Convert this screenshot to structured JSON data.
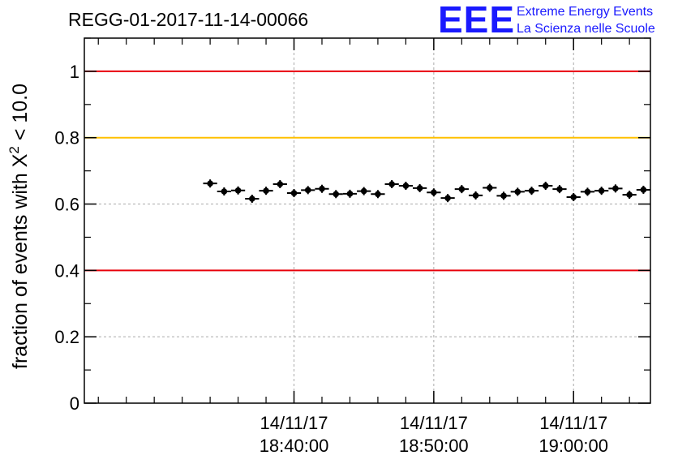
{
  "header": {
    "run_id": "REGG-01-2017-11-14-00066",
    "logo_text": "EEE",
    "brand_line1": "Extreme Energy Events",
    "brand_line2": "La Scienza nelle Scuole",
    "brand_color": "#1a1aff"
  },
  "chart_data": {
    "type": "scatter",
    "title": "REGG-01-2017-11-14-00066",
    "xlabel": "",
    "ylabel_prefix": "fraction of events with X",
    "ylabel_sup": "2",
    "ylabel_suffix": " < 10.0",
    "xlim": [
      0,
      40.5
    ],
    "ylim": [
      0,
      1.1
    ],
    "grid": true,
    "y_ticks": [
      {
        "value": 0,
        "label": "0"
      },
      {
        "value": 0.2,
        "label": "0.2"
      },
      {
        "value": 0.4,
        "label": "0.4"
      },
      {
        "value": 0.6,
        "label": "0.6"
      },
      {
        "value": 0.8,
        "label": "0.8"
      },
      {
        "value": 1,
        "label": "1"
      }
    ],
    "x_ticks": [
      {
        "value": 15,
        "date": "14/11/17",
        "time": "18:40:00"
      },
      {
        "value": 25,
        "date": "14/11/17",
        "time": "18:50:00"
      },
      {
        "value": 35,
        "date": "14/11/17",
        "time": "19:00:00"
      }
    ],
    "minor_x_step": 2,
    "bin_width_minutes": 1,
    "reference_lines": [
      {
        "value": 1.0,
        "color": "#e8000b",
        "name": "upper-red-line"
      },
      {
        "value": 0.8,
        "color": "#ffc000",
        "name": "yellow-line"
      },
      {
        "value": 0.4,
        "color": "#e8000b",
        "name": "lower-red-line"
      }
    ],
    "series": [
      {
        "name": "fraction",
        "x": [
          9,
          10,
          11,
          12,
          13,
          14,
          15,
          16,
          17,
          18,
          19,
          20,
          21,
          22,
          23,
          24,
          25,
          26,
          27,
          28,
          29,
          30,
          31,
          32,
          33,
          34,
          35,
          36,
          37,
          38,
          39,
          40
        ],
        "values": [
          0.662,
          0.638,
          0.641,
          0.616,
          0.64,
          0.66,
          0.633,
          0.642,
          0.646,
          0.63,
          0.631,
          0.639,
          0.63,
          0.66,
          0.655,
          0.648,
          0.635,
          0.618,
          0.645,
          0.626,
          0.649,
          0.625,
          0.637,
          0.64,
          0.655,
          0.645,
          0.621,
          0.637,
          0.64,
          0.647,
          0.628,
          0.643
        ]
      }
    ]
  }
}
